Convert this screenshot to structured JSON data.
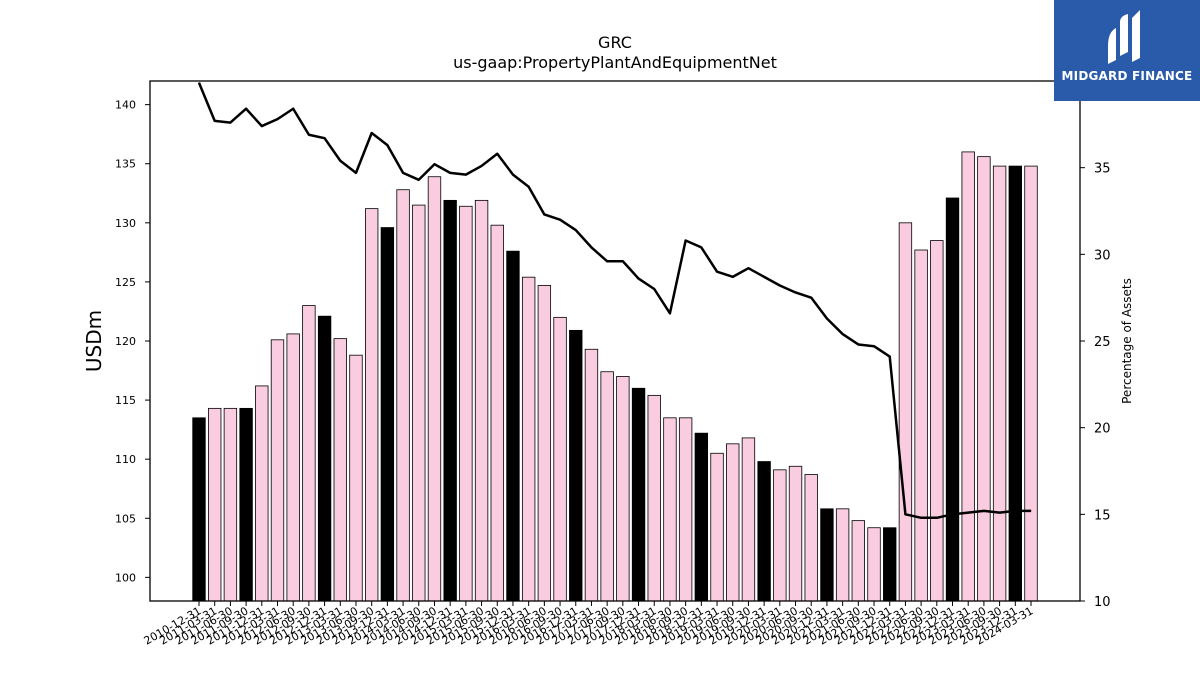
{
  "chart_data": {
    "type": "bar",
    "title": "GRC",
    "subtitle": "us-gaap:PropertyPlantAndEquipmentNet",
    "ylabel": "USDm",
    "y2label": "Percentage of Assets",
    "ylim": [
      98,
      142
    ],
    "y2lim": [
      10,
      40
    ],
    "yticks": [
      100,
      105,
      110,
      115,
      120,
      125,
      130,
      135,
      140
    ],
    "y2ticks": [
      10,
      15,
      20,
      25,
      30,
      35
    ],
    "categories": [
      "2010-12-31",
      "2011-03-31",
      "2011-06-30",
      "2011-09-30",
      "2011-12-31",
      "2012-03-31",
      "2012-06-30",
      "2012-09-30",
      "2012-12-31",
      "2013-03-31",
      "2013-06-30",
      "2013-09-30",
      "2013-12-31",
      "2014-03-31",
      "2014-06-30",
      "2014-09-30",
      "2014-12-31",
      "2015-03-31",
      "2015-06-30",
      "2015-09-30",
      "2015-12-31",
      "2016-03-31",
      "2016-06-30",
      "2016-09-30",
      "2016-12-31",
      "2017-03-31",
      "2017-06-30",
      "2017-09-30",
      "2017-12-31",
      "2018-03-31",
      "2018-06-30",
      "2018-09-30",
      "2018-12-31",
      "2019-03-31",
      "2019-06-30",
      "2019-09-30",
      "2019-12-31",
      "2020-03-31",
      "2020-06-30",
      "2020-09-30",
      "2020-12-31",
      "2021-03-31",
      "2021-06-30",
      "2021-09-30",
      "2021-12-31",
      "2022-03-31",
      "2022-06-30",
      "2022-09-30",
      "2022-12-31",
      "2023-03-31",
      "2023-06-30",
      "2023-09-30",
      "2023-12-31",
      "2024-03-31"
    ],
    "series": [
      {
        "kind": "bar",
        "values": [
          113.5,
          114.3,
          114.3,
          114.3,
          116.2,
          120.1,
          120.6,
          123.0,
          122.1,
          120.2,
          118.8,
          131.2,
          129.6,
          132.8,
          131.5,
          133.9,
          131.9,
          131.4,
          131.9,
          129.8,
          127.6,
          125.4,
          124.7,
          122.0,
          120.9,
          119.3,
          117.4,
          117.0,
          116.0,
          115.4,
          113.5,
          113.5,
          112.2,
          110.5,
          111.3,
          111.8,
          109.8,
          109.1,
          109.4,
          108.7,
          105.8,
          105.8,
          104.8,
          104.2,
          104.2,
          130.0,
          127.7,
          128.5,
          132.1,
          136.0,
          135.6,
          134.8,
          134.8,
          134.8
        ],
        "highlight": [
          1,
          0,
          0,
          1,
          0,
          0,
          0,
          0,
          1,
          0,
          0,
          0,
          1,
          0,
          0,
          0,
          1,
          0,
          0,
          0,
          1,
          0,
          0,
          0,
          1,
          0,
          0,
          0,
          1,
          0,
          0,
          0,
          1,
          0,
          0,
          0,
          1,
          0,
          0,
          0,
          1,
          0,
          0,
          0,
          1,
          0,
          0,
          0,
          1,
          0,
          0,
          0,
          1,
          0
        ],
        "color": "#f9cce0",
        "highlight_color": "#000000"
      },
      {
        "kind": "line",
        "axis": "right",
        "values": [
          39.9,
          37.7,
          37.6,
          38.4,
          37.4,
          37.8,
          38.4,
          36.9,
          36.7,
          35.4,
          34.7,
          37.0,
          36.3,
          34.7,
          34.3,
          35.2,
          34.7,
          34.6,
          35.1,
          35.8,
          34.6,
          33.9,
          32.3,
          32.0,
          31.4,
          30.4,
          29.6,
          29.6,
          28.6,
          28.0,
          26.6,
          30.8,
          30.4,
          29.0,
          28.7,
          29.2,
          28.7,
          28.2,
          27.8,
          27.5,
          26.3,
          25.4,
          24.8,
          24.7,
          24.1,
          15.0,
          14.8,
          14.8,
          15.0,
          15.1,
          15.2,
          15.1,
          15.2,
          15.2
        ],
        "color": "#000000"
      }
    ],
    "grid": false,
    "legend": "none"
  },
  "brand": {
    "name": "MIDGARD FINANCE",
    "logo_icon": "midgard-logo-icon",
    "color": "#2a5bab"
  }
}
